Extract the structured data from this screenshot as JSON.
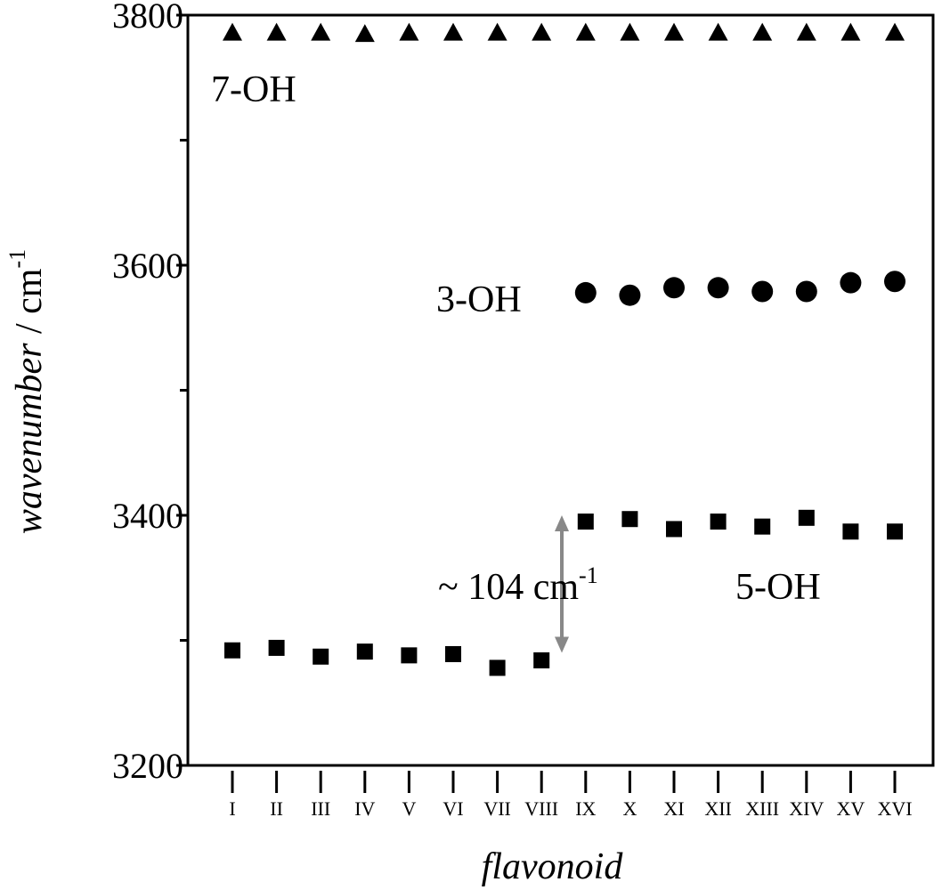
{
  "chart_data": {
    "type": "scatter",
    "title": "",
    "xlabel": "flavonoid",
    "ylabel_main": "wavenumber",
    "ylabel_unit": " / cm",
    "ylabel_sup": "-1",
    "ylim": [
      3200,
      3800
    ],
    "yticks_major": [
      3200,
      3400,
      3600,
      3800
    ],
    "yticks_minor": [
      3300,
      3500,
      3700
    ],
    "categories": [
      "I",
      "II",
      "III",
      "IV",
      "V",
      "VI",
      "VII",
      "VIII",
      "IX",
      "X",
      "XI",
      "XII",
      "XIII",
      "XIV",
      "XV",
      "XVI"
    ],
    "grid": false,
    "series": [
      {
        "name": "7-OH",
        "marker": "triangle",
        "color": "#000000",
        "values": [
          3786,
          3786,
          3786,
          3785,
          3786,
          3786,
          3786,
          3786,
          3786,
          3786,
          3786,
          3786,
          3786,
          3786,
          3786,
          3786
        ]
      },
      {
        "name": "3-OH",
        "marker": "circle",
        "color": "#000000",
        "values": [
          null,
          null,
          null,
          null,
          null,
          null,
          null,
          null,
          3578,
          3576,
          3582,
          3582,
          3579,
          3579,
          3586,
          3587
        ]
      },
      {
        "name": "5-OH",
        "marker": "square",
        "color": "#000000",
        "values": [
          3292,
          3294,
          3287,
          3291,
          3288,
          3289,
          3278,
          3284,
          3395,
          3397,
          3389,
          3395,
          3391,
          3398,
          3387,
          3387
        ]
      }
    ],
    "annotations": [
      {
        "text_main": "~ 104 cm",
        "text_sup": "-1",
        "arrow_from": 3290,
        "arrow_to": 3400,
        "arrow_color": "#888888"
      }
    ]
  }
}
